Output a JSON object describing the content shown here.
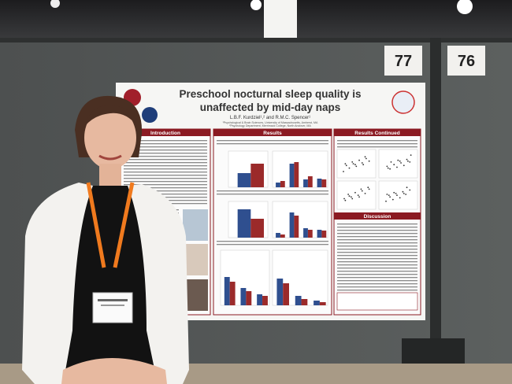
{
  "booth_numbers": [
    "77",
    "76"
  ],
  "poster": {
    "title_line1": "Preschool nocturnal sleep quality is",
    "title_line2": "unaffected by mid-day naps",
    "authors": "L.B.F. Kurdziel¹,² and R.M.C. Spencer¹",
    "affiliation1": "¹Psychological & Brain Sciences, University of Massachusetts, Amherst, MA",
    "affiliation2": "²Psychology Department, Merrimack College, North Andover, MA",
    "sections": [
      "Introduction",
      "Results",
      "Results Continued",
      "Discussion"
    ]
  }
}
